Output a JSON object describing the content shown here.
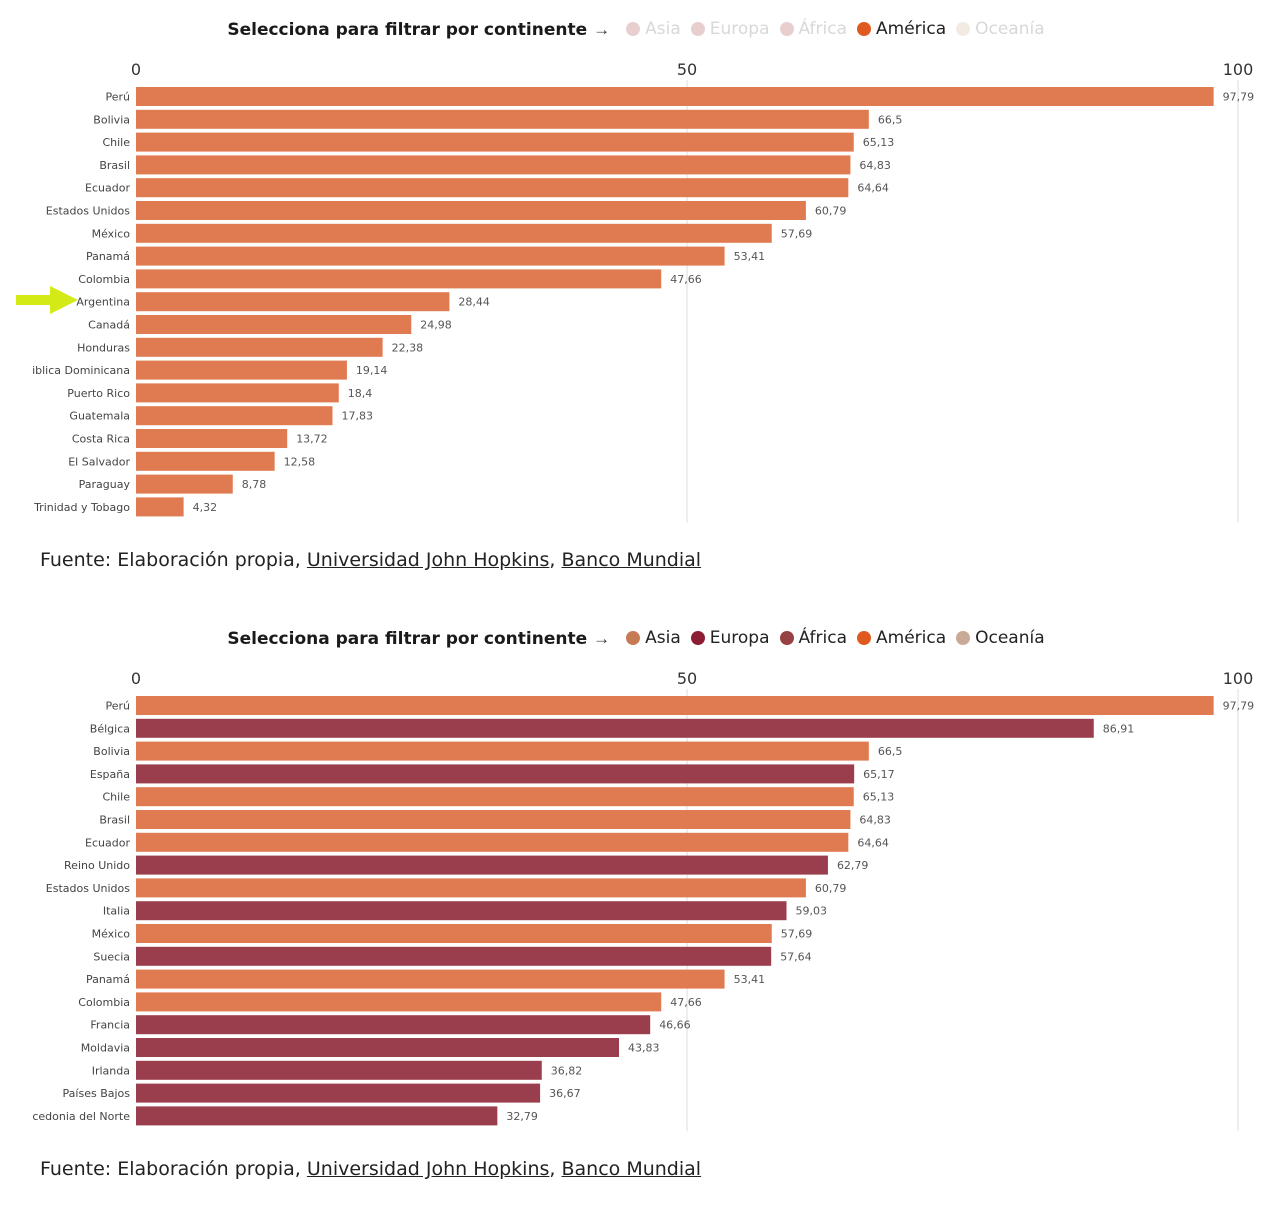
{
  "colors": {
    "america": "#e07a50",
    "europa": "#9a3e4e",
    "asia": "#c77b55",
    "europa_dot": "#8c1d32",
    "africa": "#964242",
    "oceania": "#c8aa96",
    "grid": "#dddddd",
    "pointer": "#d4ea17"
  },
  "filter": {
    "label": "Selecciona para filtrar por continente",
    "arrow": "→"
  },
  "source": {
    "prefix": "Fuente: Elaboración propia,",
    "link1": "Universidad John Hopkins",
    "sep": ",",
    "link2": "Banco Mundial"
  },
  "charts": [
    {
      "legend": [
        {
          "name": "Asia",
          "color": "#e8cfcf",
          "active": false
        },
        {
          "name": "Europa",
          "color": "#e8cfcf",
          "active": false
        },
        {
          "name": "África",
          "color": "#e8cfcf",
          "active": false
        },
        {
          "name": "América",
          "color": "#e05a20",
          "active": true
        },
        {
          "name": "Oceanía",
          "color": "#f2ebe4",
          "active": false
        }
      ]
    },
    {
      "legend": [
        {
          "name": "Asia",
          "color": "#c77b55",
          "active": true
        },
        {
          "name": "Europa",
          "color": "#8c1d32",
          "active": true
        },
        {
          "name": "África",
          "color": "#964242",
          "active": true
        },
        {
          "name": "América",
          "color": "#e05a20",
          "active": true
        },
        {
          "name": "Oceanía",
          "color": "#c8aa96",
          "active": true
        }
      ]
    }
  ],
  "chart_data": [
    {
      "type": "bar",
      "orientation": "horizontal",
      "xlim": [
        0,
        100
      ],
      "ticks": [
        "0",
        "50",
        "100"
      ],
      "grid": true,
      "highlight": "Argentina",
      "categories": [
        "Perú",
        "Bolivia",
        "Chile",
        "Brasil",
        "Ecuador",
        "Estados Unidos",
        "México",
        "Panamá",
        "Colombia",
        "Argentina",
        "Canadá",
        "Honduras",
        "iblica Dominicana",
        "Puerto Rico",
        "Guatemala",
        "Costa Rica",
        "El Salvador",
        "Paraguay",
        "Trinidad y Tobago"
      ],
      "values": [
        97.79,
        66.5,
        65.13,
        64.83,
        64.64,
        60.79,
        57.69,
        53.41,
        47.66,
        28.44,
        24.98,
        22.38,
        19.14,
        18.4,
        17.83,
        13.72,
        12.58,
        8.78,
        4.32
      ],
      "labels": [
        "97,79",
        "66,5",
        "65,13",
        "64,83",
        "64,64",
        "60,79",
        "57,69",
        "53,41",
        "47,66",
        "28,44",
        "24,98",
        "22,38",
        "19,14",
        "18,4",
        "17,83",
        "13,72",
        "12,58",
        "8,78",
        "4,32"
      ],
      "continent": [
        "América",
        "America",
        "America",
        "America",
        "America",
        "America",
        "America",
        "America",
        "America",
        "America",
        "America",
        "America",
        "America",
        "America",
        "America",
        "America",
        "America",
        "America",
        "America"
      ]
    },
    {
      "type": "bar",
      "orientation": "horizontal",
      "xlim": [
        0,
        100
      ],
      "ticks": [
        "0",
        "50",
        "100"
      ],
      "grid": true,
      "categories": [
        "Perú",
        "Bélgica",
        "Bolivia",
        "España",
        "Chile",
        "Brasil",
        "Ecuador",
        "Reino Unido",
        "Estados Unidos",
        "Italia",
        "México",
        "Suecia",
        "Panamá",
        "Colombia",
        "Francia",
        "Moldavia",
        "Irlanda",
        "Países Bajos",
        "cedonia del Norte"
      ],
      "values": [
        97.79,
        86.91,
        66.5,
        65.17,
        65.13,
        64.83,
        64.64,
        62.79,
        60.79,
        59.03,
        57.69,
        57.64,
        53.41,
        47.66,
        46.66,
        43.83,
        36.82,
        36.67,
        32.79
      ],
      "labels": [
        "97,79",
        "86,91",
        "66,5",
        "65,17",
        "65,13",
        "64,83",
        "64,64",
        "62,79",
        "60,79",
        "59,03",
        "57,69",
        "57,64",
        "53,41",
        "47,66",
        "46,66",
        "43,83",
        "36,82",
        "36,67",
        "32,79"
      ],
      "continent": [
        "America",
        "Europa",
        "America",
        "Europa",
        "America",
        "America",
        "America",
        "Europa",
        "America",
        "Europa",
        "America",
        "Europa",
        "America",
        "America",
        "Europa",
        "Europa",
        "Europa",
        "Europa",
        "Europa"
      ]
    }
  ]
}
